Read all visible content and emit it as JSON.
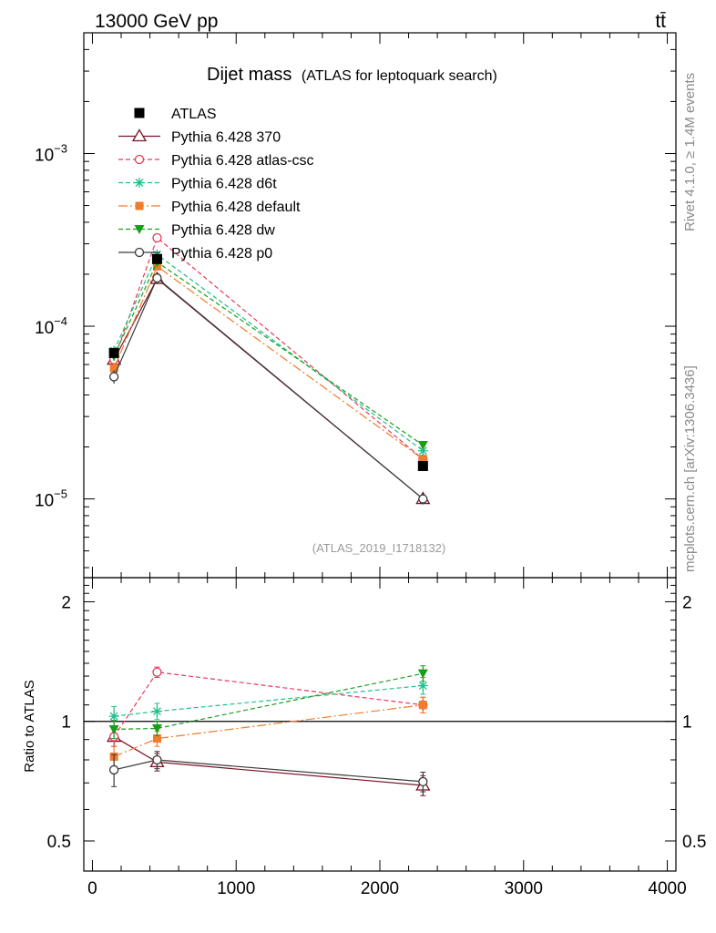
{
  "header": {
    "energy_label": "13000 GeV pp",
    "process_label": "tt̄"
  },
  "side_labels": {
    "rivet": "Rivet 4.1.0, ≥ 1.4M events",
    "mcplots": "mcplots.cern.ch [arXiv:1306.3436]"
  },
  "chart_data": {
    "type": "line",
    "title": "Dijet mass",
    "subtitle": "(ATLAS for leptoquark search)",
    "analysis_id": "(ATLAS_2019_I1718132)",
    "xlabel": "",
    "ylabel": "",
    "ratio_ylabel": "Ratio to ATLAS",
    "x": [
      150,
      450,
      2300
    ],
    "xlim": [
      -60,
      4060
    ],
    "ylim": [
      3.5e-06,
      0.005
    ],
    "ratio_ylim": [
      0.42,
      2.3
    ],
    "x_ticks": [
      0,
      1000,
      2000,
      3000,
      4000
    ],
    "x_tick_labels": [
      "0",
      "1000",
      "2000",
      "3000",
      "4000"
    ],
    "y_major_ticks": [
      1e-05,
      0.0001,
      0.001
    ],
    "y_tick_labels": [
      {
        "base": "10",
        "exp": "−5"
      },
      {
        "base": "10",
        "exp": "−4"
      },
      {
        "base": "10",
        "exp": "−3"
      }
    ],
    "ratio_ticks": [
      0.5,
      1,
      2
    ],
    "ratio_tick_labels": [
      "0.5",
      "1",
      "2"
    ],
    "data": {
      "name": "ATLAS",
      "values": [
        7e-05,
        0.000245,
        1.55e-05
      ],
      "errors": [
        3e-06,
        1e-05,
        7e-07
      ]
    },
    "series": [
      {
        "name": "Pythia 6.428 370",
        "color": "#7a1426",
        "marker": "triangle-open",
        "dash": "",
        "values": [
          6.4e-05,
          0.000188,
          1e-05
        ],
        "errors": [
          4e-06,
          8e-06,
          7e-07
        ],
        "ratio": [
          0.915,
          0.79,
          0.69
        ],
        "ratio_errors": [
          0.05,
          0.04,
          0.04
        ]
      },
      {
        "name": "Pythia 6.428 atlas-csc",
        "color": "#e8385a",
        "marker": "circle-open",
        "dash": "5,3",
        "values": [
          6.4e-05,
          0.000325,
          1.7e-05
        ],
        "errors": [
          4e-06,
          1.2e-05,
          9e-07
        ],
        "ratio": [
          0.915,
          1.33,
          1.1
        ],
        "ratio_errors": [
          0.05,
          0.04,
          0.05
        ]
      },
      {
        "name": "Pythia 6.428 d6t",
        "color": "#1fbf8e",
        "marker": "star",
        "dash": "5,3",
        "values": [
          7.2e-05,
          0.00026,
          1.9e-05
        ],
        "errors": [
          5e-06,
          1.1e-05,
          1e-06
        ],
        "ratio": [
          1.03,
          1.06,
          1.23
        ],
        "ratio_errors": [
          0.06,
          0.05,
          0.06
        ]
      },
      {
        "name": "Pythia 6.428 default",
        "color": "#f07c2e",
        "marker": "square",
        "dash": "10,3,2,3",
        "values": [
          5.7e-05,
          0.000222,
          1.7e-05
        ],
        "errors": [
          4e-06,
          9e-06,
          9e-07
        ],
        "ratio": [
          0.815,
          0.905,
          1.1
        ],
        "ratio_errors": [
          0.05,
          0.04,
          0.05
        ]
      },
      {
        "name": "Pythia 6.428 dw",
        "color": "#1a9e1a",
        "marker": "triangle-down",
        "dash": "5,3",
        "values": [
          6.7e-05,
          0.000235,
          2.05e-05
        ],
        "errors": [
          4e-06,
          1e-05,
          1e-06
        ],
        "ratio": [
          0.955,
          0.96,
          1.32
        ],
        "ratio_errors": [
          0.05,
          0.04,
          0.06
        ]
      },
      {
        "name": "Pythia 6.428 p0",
        "color": "#3a3a3a",
        "marker": "circle-open",
        "dash": "",
        "values": [
          5.1e-05,
          0.00019,
          1e-05
        ],
        "errors": [
          4.5e-06,
          8e-06,
          7e-07
        ],
        "ratio": [
          0.755,
          0.8,
          0.705
        ],
        "ratio_errors": [
          0.07,
          0.04,
          0.04
        ]
      }
    ]
  }
}
